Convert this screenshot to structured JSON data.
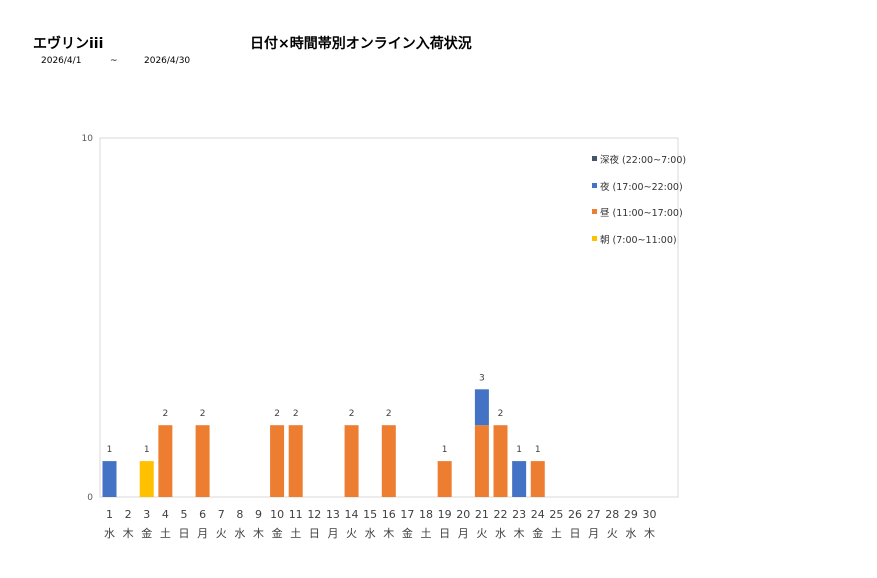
{
  "header": {
    "store_name": "エヴリンiii",
    "date_start": "2026/4/1",
    "date_sep": "~",
    "date_end": "2026/4/30"
  },
  "chart_data": {
    "type": "bar",
    "stacked": true,
    "title": "日付×時間帯別オンライン入荷状況",
    "ylim": [
      0,
      10
    ],
    "yticks": [
      0,
      10
    ],
    "grid": false,
    "legend_position": "top-right",
    "categories": [
      "1",
      "2",
      "3",
      "4",
      "5",
      "6",
      "7",
      "8",
      "9",
      "10",
      "11",
      "12",
      "13",
      "14",
      "15",
      "16",
      "17",
      "18",
      "19",
      "20",
      "21",
      "22",
      "23",
      "24",
      "25",
      "26",
      "27",
      "28",
      "29",
      "30"
    ],
    "weekdays": [
      "水",
      "木",
      "金",
      "土",
      "日",
      "月",
      "火",
      "水",
      "木",
      "金",
      "土",
      "日",
      "月",
      "火",
      "水",
      "木",
      "金",
      "土",
      "日",
      "月",
      "火",
      "水",
      "木",
      "金",
      "土",
      "日",
      "月",
      "火",
      "水",
      "木"
    ],
    "series": [
      {
        "name": "朝 (7:00~11:00)",
        "color": "#FFC000",
        "values": [
          0,
          0,
          1,
          0,
          0,
          0,
          0,
          0,
          0,
          0,
          0,
          0,
          0,
          0,
          0,
          0,
          0,
          0,
          0,
          0,
          0,
          0,
          0,
          0,
          0,
          0,
          0,
          0,
          0,
          0
        ]
      },
      {
        "name": "昼 (11:00~17:00)",
        "color": "#ED7D31",
        "values": [
          0,
          0,
          0,
          2,
          0,
          2,
          0,
          0,
          0,
          2,
          2,
          0,
          0,
          2,
          0,
          2,
          0,
          0,
          1,
          0,
          2,
          2,
          0,
          1,
          0,
          0,
          0,
          0,
          0,
          0
        ]
      },
      {
        "name": "夜 (17:00~22:00)",
        "color": "#4472C4",
        "values": [
          1,
          0,
          0,
          0,
          0,
          0,
          0,
          0,
          0,
          0,
          0,
          0,
          0,
          0,
          0,
          0,
          0,
          0,
          0,
          0,
          1,
          0,
          1,
          0,
          0,
          0,
          0,
          0,
          0,
          0
        ]
      },
      {
        "name": "深夜 (22:00~7:00)",
        "color": "#44546A",
        "values": [
          0,
          0,
          0,
          0,
          0,
          0,
          0,
          0,
          0,
          0,
          0,
          0,
          0,
          0,
          0,
          0,
          0,
          0,
          0,
          0,
          0,
          0,
          0,
          0,
          0,
          0,
          0,
          0,
          0,
          0
        ]
      }
    ],
    "totals": [
      1,
      0,
      1,
      2,
      0,
      2,
      0,
      0,
      0,
      2,
      2,
      0,
      0,
      2,
      0,
      2,
      0,
      0,
      1,
      0,
      3,
      2,
      1,
      1,
      0,
      0,
      0,
      0,
      0,
      0
    ]
  }
}
